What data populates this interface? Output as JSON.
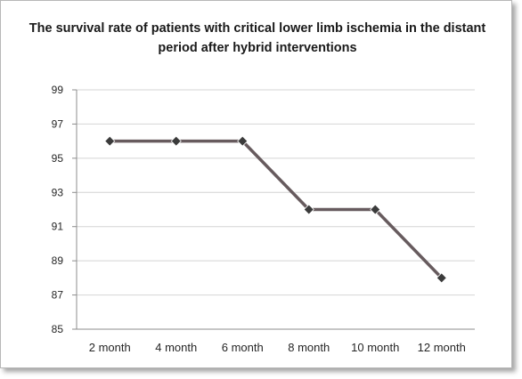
{
  "chart_data": {
    "type": "line",
    "title": "The survival rate of patients with critical lower limb ischemia in the distant period after hybrid interventions",
    "xlabel": "",
    "ylabel": "",
    "categories": [
      "2 month",
      "4 month",
      "6 month",
      "8 month",
      "10 month",
      "12 month"
    ],
    "series": [
      {
        "values": [
          96,
          96,
          96,
          92,
          92,
          88
        ]
      }
    ],
    "ylim": [
      85,
      99
    ],
    "yticks": [
      99,
      97,
      95,
      93,
      91,
      89,
      87,
      85
    ],
    "grid": true,
    "legend": "none",
    "colors": {
      "line": "#675b5e",
      "marker": "#3b3b3b",
      "grid": "#d4d4d4"
    }
  }
}
